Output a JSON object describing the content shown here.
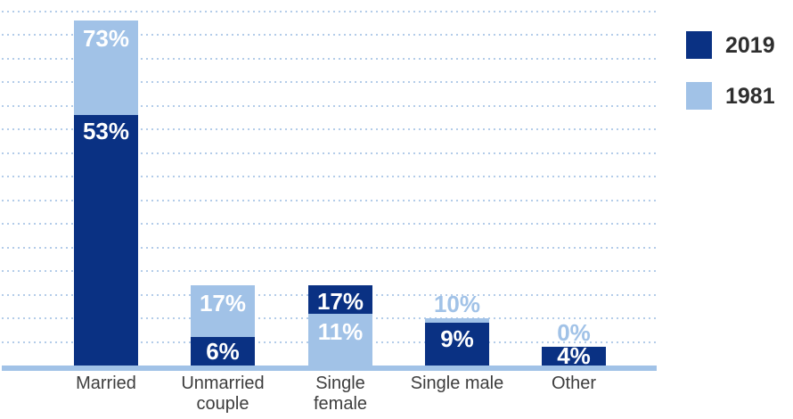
{
  "chart_data": {
    "type": "bar",
    "subtype": "overlay-grouped (smaller bar drawn in front of larger bar)",
    "title": "",
    "xlabel": "",
    "ylabel": "",
    "categories": [
      "Married",
      "Unmarried couple",
      "Single female",
      "Single male",
      "Other"
    ],
    "series": [
      {
        "name": "2019",
        "color": "#0a3183",
        "values": [
          53,
          6,
          17,
          9,
          4
        ],
        "labels": [
          "53%",
          "6%",
          "17%",
          "9%",
          "4%"
        ]
      },
      {
        "name": "1981",
        "color": "#a1c2e7",
        "values": [
          73,
          17,
          11,
          10,
          0
        ],
        "labels": [
          "73%",
          "17%",
          "11%",
          "10%",
          "0%"
        ]
      }
    ],
    "ylim": [
      0,
      75
    ],
    "gridline_step_pct": 5,
    "grid": "dotted horizontal light-blue lines, no y-axis tick labels",
    "legend_position": "top-right",
    "value_label_color_inside_bar": "#ffffff",
    "value_label_color_above_bar": "#a1c2e7",
    "gridline_color": "#b3cce9",
    "axis_line_color": "#a1c2e7",
    "category_label_color": "#3d3d3d"
  },
  "legend": {
    "items": [
      {
        "label": "2019",
        "color": "#0a3183"
      },
      {
        "label": "1981",
        "color": "#a1c2e7"
      }
    ]
  }
}
